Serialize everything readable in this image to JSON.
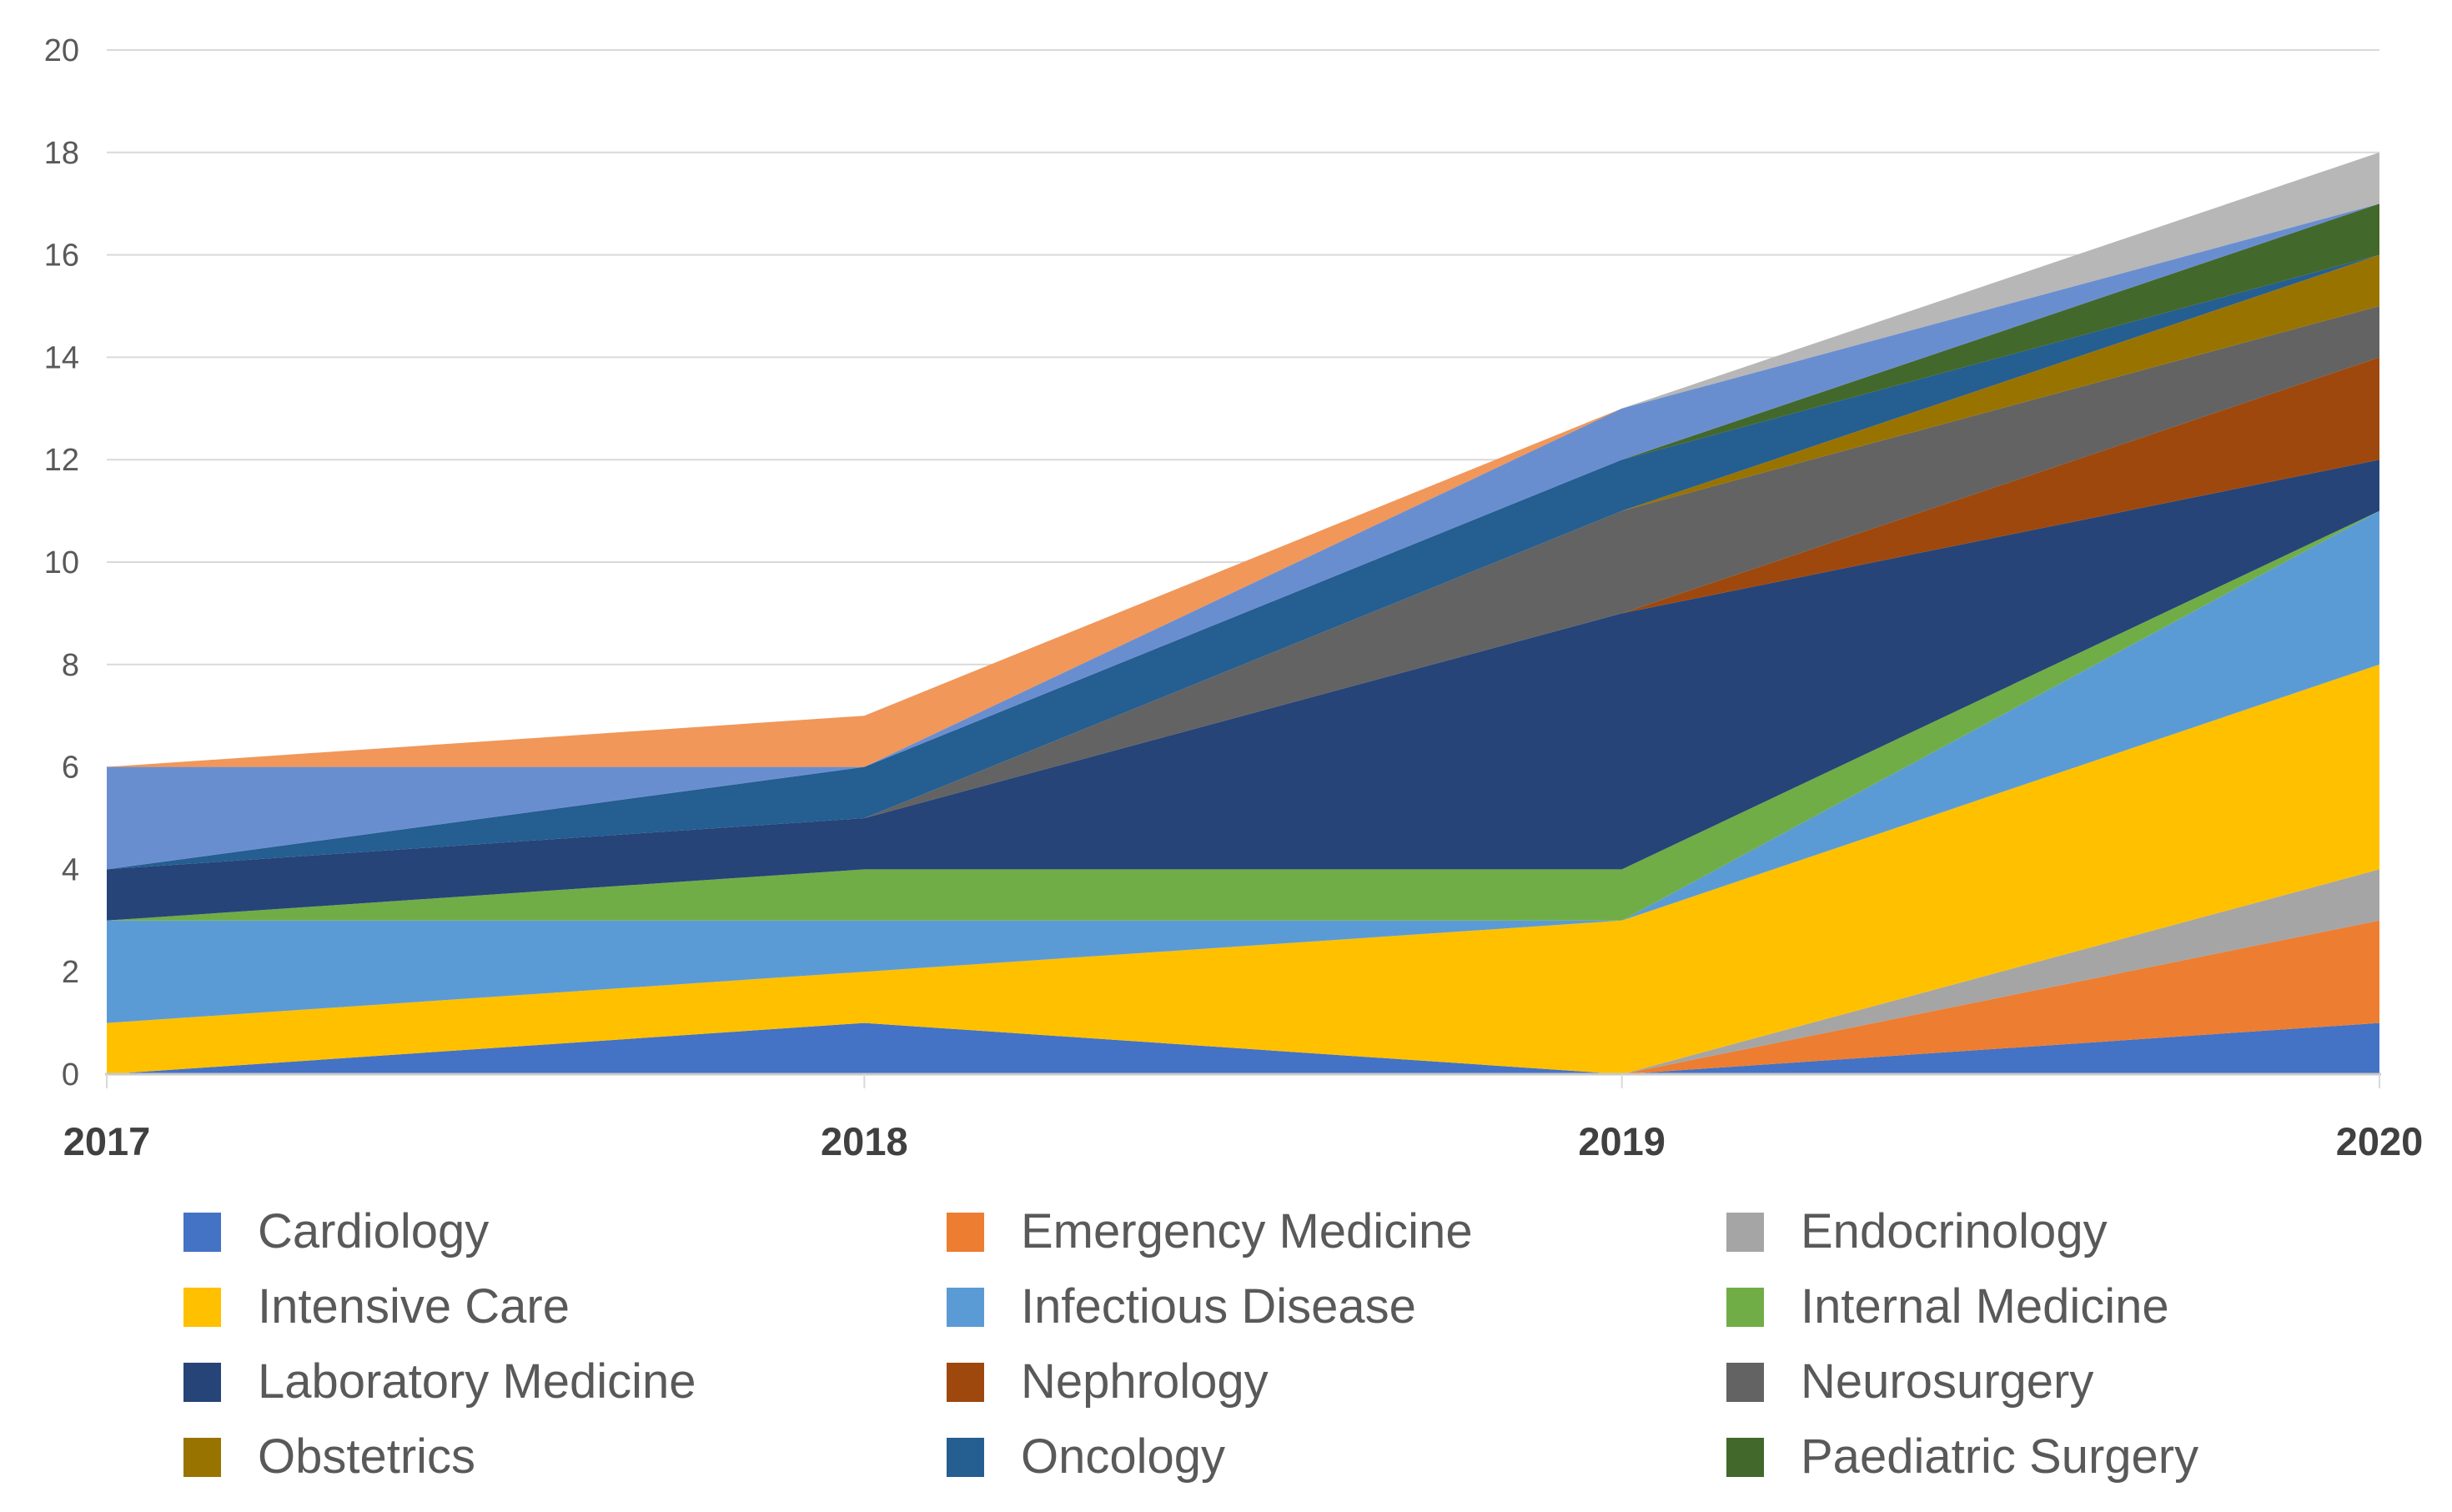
{
  "chart_data": {
    "type": "area",
    "stacked": true,
    "title": "",
    "xlabel": "",
    "ylabel": "",
    "x_categories": [
      "2017",
      "2018",
      "2019",
      "2020"
    ],
    "ylim": [
      0,
      20
    ],
    "ytick_step": 2,
    "y_ticks": [
      0,
      2,
      4,
      6,
      8,
      10,
      12,
      14,
      16,
      18,
      20
    ],
    "grid": true,
    "gridline_color": "#D9D9D9",
    "axis_line_color": "#C9C9C9",
    "y_label_color": "#595959",
    "x_label_color": "#404040",
    "legend_position": "bottom",
    "legend_columns": 3,
    "series": [
      {
        "name": "Cardiology",
        "color": "#4472C4",
        "in_legend": true,
        "values": [
          0,
          1,
          0,
          1
        ]
      },
      {
        "name": "Emergency Medicine",
        "color": "#ED7D31",
        "in_legend": true,
        "values": [
          0,
          0,
          0,
          2
        ]
      },
      {
        "name": "Endocrinology",
        "color": "#A5A5A5",
        "in_legend": true,
        "values": [
          0,
          0,
          0,
          1
        ]
      },
      {
        "name": "Intensive Care",
        "color": "#FFC000",
        "in_legend": true,
        "values": [
          1,
          1,
          3,
          4
        ]
      },
      {
        "name": "Infectious Disease",
        "color": "#5B9BD5",
        "in_legend": true,
        "values": [
          2,
          1,
          0,
          3
        ]
      },
      {
        "name": "Internal Medicine",
        "color": "#70AD47",
        "in_legend": true,
        "values": [
          0,
          1,
          1,
          0
        ]
      },
      {
        "name": "Laboratory Medicine",
        "color": "#264478",
        "in_legend": true,
        "values": [
          1,
          1,
          5,
          1
        ]
      },
      {
        "name": "Nephrology",
        "color": "#9E480E",
        "in_legend": true,
        "values": [
          0,
          0,
          0,
          2
        ]
      },
      {
        "name": "Neurosurgery",
        "color": "#636363",
        "in_legend": true,
        "values": [
          0,
          0,
          2,
          1
        ]
      },
      {
        "name": "Obstetrics",
        "color": "#997300",
        "in_legend": true,
        "values": [
          0,
          0,
          0,
          1
        ]
      },
      {
        "name": "Oncology",
        "color": "#255E91",
        "in_legend": true,
        "values": [
          0,
          1,
          1,
          0
        ]
      },
      {
        "name": "Paediatric Surgery",
        "color": "#43682B",
        "in_legend": true,
        "values": [
          0,
          0,
          0,
          1
        ]
      },
      {
        "name": "",
        "color": "#698ED0",
        "in_legend": false,
        "values": [
          2,
          0,
          1,
          0
        ]
      },
      {
        "name": "",
        "color": "#F1975A",
        "in_legend": false,
        "values": [
          0,
          1,
          0,
          0
        ]
      },
      {
        "name": "",
        "color": "#B7B7B7",
        "in_legend": false,
        "values": [
          0,
          0,
          0,
          1
        ]
      }
    ]
  },
  "layout_note": "legend shows only the 12 labeled series"
}
